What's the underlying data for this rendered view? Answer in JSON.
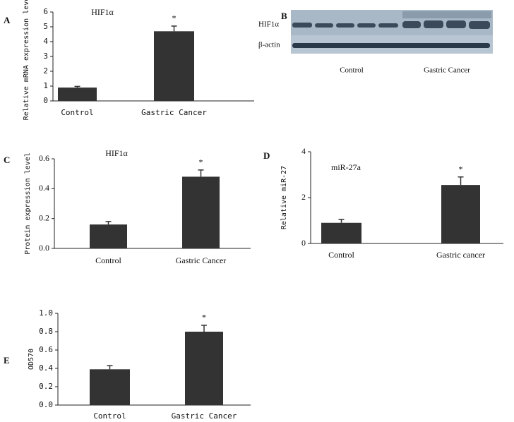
{
  "chart_data": [
    {
      "type": "bar",
      "label": "A",
      "title": "HIF1α",
      "y_label": "Relative mRNA expression level",
      "categories": [
        "Control",
        "Gastric Cancer"
      ],
      "values": [
        0.9,
        4.7
      ],
      "errors": [
        0.08,
        0.35
      ],
      "annotation": "*",
      "color": "#333333",
      "ylim": [
        0,
        6
      ],
      "yticks": [
        0,
        1,
        2,
        3,
        4,
        5,
        6
      ]
    },
    {
      "type": "bar",
      "label": "C",
      "title": "HIF1α",
      "y_label": "Protein expression level",
      "categories": [
        "Control",
        "Gastric Cancer"
      ],
      "values": [
        0.16,
        0.48
      ],
      "errors": [
        0.02,
        0.045
      ],
      "annotation": "*",
      "color": "#333333",
      "ylim": [
        0,
        0.6
      ],
      "yticks": [
        {
          "value": 0,
          "label": "0.0"
        },
        0.2,
        0.4,
        0.6
      ]
    },
    {
      "type": "bar",
      "label": "D",
      "title": "miR-27a",
      "y_label": "Relative miR-27",
      "categories": [
        "Control",
        "Gastric cancer"
      ],
      "values": [
        0.9,
        2.55
      ],
      "errors": [
        0.15,
        0.35
      ],
      "annotation": "*",
      "color": "#333333",
      "ylim": [
        0,
        4
      ],
      "yticks": [
        0,
        2,
        4
      ]
    },
    {
      "type": "bar",
      "label": "E",
      "y_label": "OD570",
      "categories": [
        "Control",
        "Gastric Cancer"
      ],
      "values": [
        0.39,
        0.8
      ],
      "errors": [
        0.04,
        0.07
      ],
      "annotation": "*",
      "color": "#333333",
      "ylim": [
        0,
        1
      ],
      "yticks": [
        {
          "value": 0,
          "label": "0.0"
        },
        0.2,
        0.4,
        0.6,
        0.8,
        {
          "value": 1,
          "label": "1.0"
        }
      ]
    }
  ],
  "blot": {
    "label": "B",
    "rows": [
      "HIF1α",
      "β-actin"
    ],
    "groups": [
      "Control",
      "Gastric Cancer"
    ]
  }
}
